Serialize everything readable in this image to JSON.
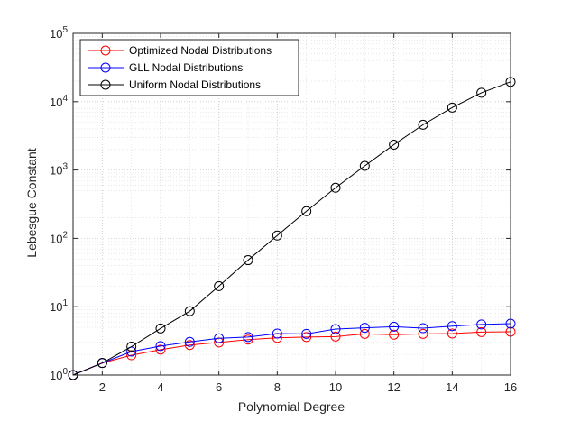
{
  "chart_data": {
    "type": "line",
    "xlabel": "Polynomial Degree",
    "ylabel": "Lebesgue Constant",
    "xlim": [
      1,
      16
    ],
    "ylim": [
      1,
      100000
    ],
    "yscale": "log",
    "grid": true,
    "legend_position": "top-left",
    "x_ticks": [
      2,
      4,
      6,
      8,
      10,
      12,
      14,
      16
    ],
    "x_tick_labels": [
      "2",
      "4",
      "6",
      "8",
      "10",
      "12",
      "14",
      "16"
    ],
    "y_ticks": [
      1,
      10,
      100,
      1000,
      10000,
      100000
    ],
    "y_tick_bases": [
      "10",
      "10",
      "10",
      "10",
      "10",
      "10"
    ],
    "y_tick_exponents": [
      "0",
      "1",
      "2",
      "3",
      "4",
      "5"
    ],
    "x": [
      1,
      2,
      3,
      4,
      5,
      6,
      7,
      8,
      9,
      10,
      11,
      12,
      13,
      14,
      15,
      16
    ],
    "series": [
      {
        "name": "Optimized Nodal Distributions",
        "color": "#ff0000",
        "marker": "circle",
        "values": [
          1.0,
          1.5,
          1.95,
          2.35,
          2.75,
          3.0,
          3.3,
          3.5,
          3.6,
          3.65,
          4.0,
          3.9,
          4.0,
          4.05,
          4.25,
          4.3
        ]
      },
      {
        "name": "GLL Nodal Distributions",
        "color": "#0000ff",
        "marker": "circle",
        "values": [
          1.0,
          1.5,
          2.2,
          2.65,
          3.05,
          3.45,
          3.6,
          4.05,
          4.0,
          4.7,
          4.9,
          5.1,
          4.85,
          5.2,
          5.5,
          5.65
        ]
      },
      {
        "name": "Uniform Nodal Distributions",
        "color": "#000000",
        "marker": "circle",
        "values": [
          1.0,
          1.5,
          2.6,
          4.8,
          8.6,
          20,
          48,
          110,
          250,
          550,
          1150,
          2350,
          4600,
          8200,
          13500,
          19500
        ]
      }
    ]
  }
}
